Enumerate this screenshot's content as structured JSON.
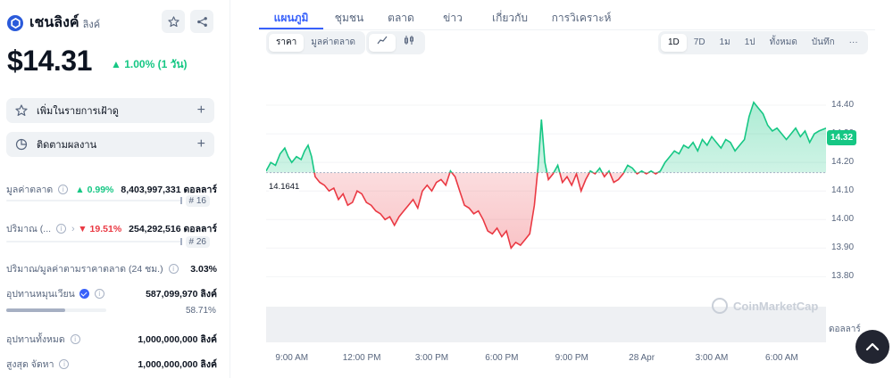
{
  "coin": {
    "name": "เชนลิงค์",
    "symbol": "ลิงค์",
    "price": "$14.31",
    "change": "▲ 1.00% (1 วัน)"
  },
  "actions": {
    "watchlist": "เพิ่มในรายการเฝ้าดู",
    "track": "ติดตามผลงาน"
  },
  "stats": {
    "market_cap": {
      "label": "มูลค่าตลาด",
      "change": "▲ 0.99%",
      "value": "8,403,997,331 ดอลลาร์",
      "rank": "# 16"
    },
    "volume": {
      "label": "ปริมาณ (...",
      "change": "▼ 19.51%",
      "value": "254,292,516 ดอลลาร์",
      "rank": "# 26"
    },
    "vol_mcap": {
      "label": "ปริมาณ/มูลค่าตามราคาตลาด (24 ชม.)",
      "value": "3.03%"
    },
    "circulating": {
      "label": "อุปทานหมุนเวียน",
      "value": "587,099,970 ลิงค์",
      "percent": "58.71%",
      "percent_value": 58.71
    },
    "total_supply": {
      "label": "อุปทานทั้งหมด",
      "value": "1,000,000,000 ลิงค์"
    },
    "max_supply": {
      "label": "สูงสุด จัดหา",
      "value": "1,000,000,000 ลิงค์"
    }
  },
  "tabs": [
    "แผนภูมิ",
    "ชุมชน",
    "ตลาด",
    "ข่าว",
    "เกี่ยวกับ",
    "การวิเคราะห์"
  ],
  "chart_toggle": [
    "ราคา",
    "มูลค่าตลาด"
  ],
  "chart_style": [
    "line-chart-icon",
    "candlestick-icon"
  ],
  "ranges": [
    "1D",
    "7D",
    "1ม",
    "1ป",
    "ทั้งหมด",
    "บันทึก",
    "···"
  ],
  "chart_data": {
    "type": "area",
    "title": "",
    "xlabel": "",
    "ylabel": "",
    "open_price_label": "14.1641",
    "open_price": 14.1641,
    "current_price_label": "14.32",
    "ylim": [
      13.72,
      14.5
    ],
    "y_ticks": [
      "14.40",
      "14.30",
      "14.20",
      "14.10",
      "14.00",
      "13.90",
      "13.80"
    ],
    "y_tick_values": [
      14.4,
      14.3,
      14.2,
      14.1,
      14.0,
      13.9,
      13.8
    ],
    "x_ticks": [
      "9:00 AM",
      "12:00 PM",
      "3:00 PM",
      "6:00 PM",
      "9:00 PM",
      "28 Apr",
      "3:00 AM",
      "6:00 AM"
    ],
    "x_tick_hours": [
      9,
      12,
      15,
      18,
      21,
      24,
      27,
      30
    ],
    "xlim_hours": [
      7.9,
      31.9
    ],
    "above_color": "#16c784",
    "below_color": "#ea3943",
    "series": [
      {
        "values": [
          [
            7.9,
            14.17
          ],
          [
            8.1,
            14.2
          ],
          [
            8.3,
            14.19
          ],
          [
            8.5,
            14.23
          ],
          [
            8.7,
            14.25
          ],
          [
            8.85,
            14.22
          ],
          [
            9.0,
            14.2
          ],
          [
            9.2,
            14.22
          ],
          [
            9.4,
            14.21
          ],
          [
            9.55,
            14.24
          ],
          [
            9.7,
            14.26
          ],
          [
            9.85,
            14.22
          ],
          [
            10.0,
            14.15
          ],
          [
            10.2,
            14.13
          ],
          [
            10.4,
            14.12
          ],
          [
            10.6,
            14.1
          ],
          [
            10.8,
            14.11
          ],
          [
            11.0,
            14.07
          ],
          [
            11.2,
            14.09
          ],
          [
            11.4,
            14.05
          ],
          [
            11.6,
            14.06
          ],
          [
            11.8,
            14.1
          ],
          [
            12.0,
            14.09
          ],
          [
            12.2,
            14.06
          ],
          [
            12.4,
            14.05
          ],
          [
            12.6,
            14.03
          ],
          [
            12.8,
            14.02
          ],
          [
            13.0,
            14.0
          ],
          [
            13.2,
            14.01
          ],
          [
            13.4,
            13.98
          ],
          [
            13.6,
            14.01
          ],
          [
            13.8,
            14.03
          ],
          [
            14.0,
            14.05
          ],
          [
            14.2,
            14.07
          ],
          [
            14.4,
            14.04
          ],
          [
            14.6,
            14.1
          ],
          [
            14.8,
            14.12
          ],
          [
            15.0,
            14.1
          ],
          [
            15.2,
            14.13
          ],
          [
            15.4,
            14.14
          ],
          [
            15.6,
            14.12
          ],
          [
            15.8,
            14.17
          ],
          [
            16.0,
            14.15
          ],
          [
            16.2,
            14.1
          ],
          [
            16.4,
            14.05
          ],
          [
            16.6,
            14.04
          ],
          [
            16.8,
            14.02
          ],
          [
            17.0,
            14.03
          ],
          [
            17.2,
            14.0
          ],
          [
            17.4,
            13.96
          ],
          [
            17.6,
            13.95
          ],
          [
            17.8,
            13.97
          ],
          [
            18.0,
            13.94
          ],
          [
            18.2,
            13.96
          ],
          [
            18.4,
            13.9
          ],
          [
            18.6,
            13.92
          ],
          [
            18.8,
            13.91
          ],
          [
            19.0,
            13.93
          ],
          [
            19.2,
            13.95
          ],
          [
            19.4,
            14.05
          ],
          [
            19.55,
            14.18
          ],
          [
            19.7,
            14.35
          ],
          [
            19.85,
            14.2
          ],
          [
            20.0,
            14.14
          ],
          [
            20.2,
            14.16
          ],
          [
            20.4,
            14.19
          ],
          [
            20.6,
            14.13
          ],
          [
            20.8,
            14.15
          ],
          [
            21.0,
            14.12
          ],
          [
            21.2,
            14.16
          ],
          [
            21.4,
            14.1
          ],
          [
            21.6,
            14.14
          ],
          [
            21.8,
            14.17
          ],
          [
            22.0,
            14.16
          ],
          [
            22.2,
            14.18
          ],
          [
            22.4,
            14.15
          ],
          [
            22.6,
            14.17
          ],
          [
            22.8,
            14.13
          ],
          [
            23.0,
            14.14
          ],
          [
            23.2,
            14.16
          ],
          [
            23.4,
            14.19
          ],
          [
            23.6,
            14.18
          ],
          [
            23.8,
            14.16
          ],
          [
            24.0,
            14.17
          ],
          [
            24.2,
            14.16
          ],
          [
            24.4,
            14.17
          ],
          [
            24.6,
            14.16
          ],
          [
            24.8,
            14.17
          ],
          [
            25.0,
            14.2
          ],
          [
            25.2,
            14.22
          ],
          [
            25.4,
            14.24
          ],
          [
            25.6,
            14.23
          ],
          [
            25.8,
            14.26
          ],
          [
            26.0,
            14.25
          ],
          [
            26.2,
            14.27
          ],
          [
            26.4,
            14.24
          ],
          [
            26.6,
            14.28
          ],
          [
            26.8,
            14.26
          ],
          [
            27.0,
            14.29
          ],
          [
            27.2,
            14.27
          ],
          [
            27.4,
            14.25
          ],
          [
            27.6,
            14.28
          ],
          [
            27.8,
            14.27
          ],
          [
            28.0,
            14.24
          ],
          [
            28.2,
            14.26
          ],
          [
            28.4,
            14.28
          ],
          [
            28.6,
            14.36
          ],
          [
            28.8,
            14.41
          ],
          [
            29.0,
            14.39
          ],
          [
            29.2,
            14.37
          ],
          [
            29.4,
            14.33
          ],
          [
            29.6,
            14.31
          ],
          [
            29.8,
            14.32
          ],
          [
            30.0,
            14.3
          ],
          [
            30.2,
            14.28
          ],
          [
            30.4,
            14.3
          ],
          [
            30.6,
            14.32
          ],
          [
            30.8,
            14.29
          ],
          [
            31.0,
            14.31
          ],
          [
            31.2,
            14.27
          ],
          [
            31.4,
            14.3
          ],
          [
            31.6,
            14.31
          ],
          [
            31.9,
            14.32
          ]
        ]
      }
    ],
    "volume_color": "#eef0f3"
  },
  "watermark": "CoinMarketCap",
  "currency": "ดอลลาร์",
  "colors": {
    "accent": "#3861fb",
    "up": "#16c784",
    "down": "#ea3943"
  }
}
